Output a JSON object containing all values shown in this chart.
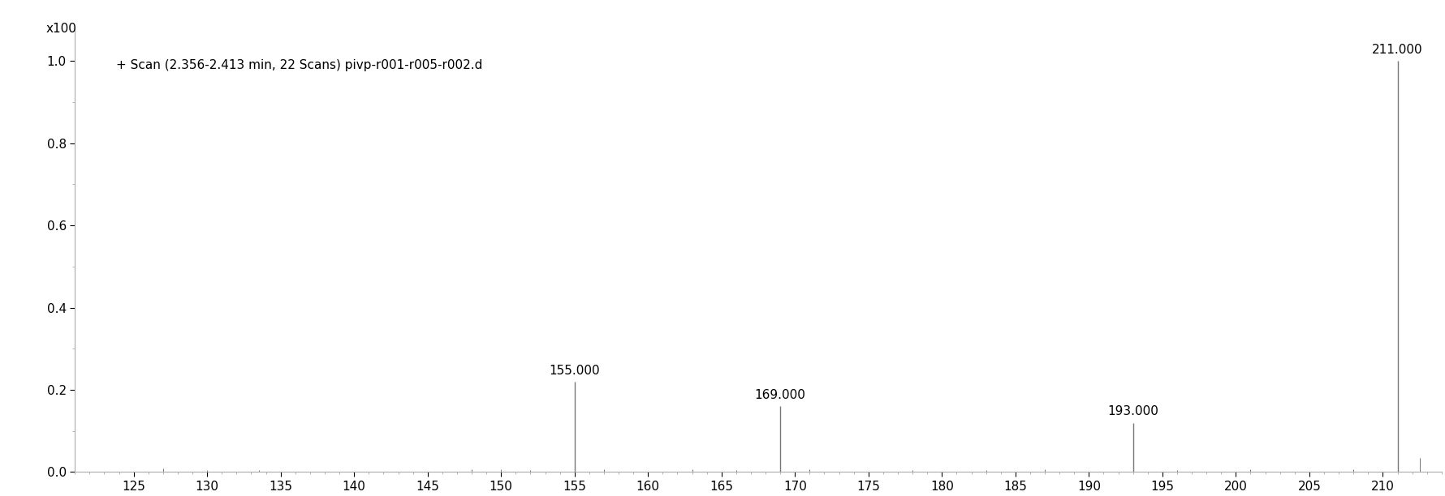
{
  "annotation": "+ Scan (2.356-2.413 min, 22 Scans) pivp-r001-r005-r002.d",
  "ylabel_text": "x100",
  "xlim": [
    121,
    214
  ],
  "ylim": [
    0,
    1.08
  ],
  "xtick_start": 125,
  "xtick_end": 210,
  "xtick_step": 5,
  "yticks": [
    0,
    0.2,
    0.4,
    0.6,
    0.8,
    1.0
  ],
  "peaks": [
    {
      "mz": 155.0,
      "intensity": 0.22,
      "label": "155.000"
    },
    {
      "mz": 169.0,
      "intensity": 0.16,
      "label": "169.000"
    },
    {
      "mz": 193.0,
      "intensity": 0.12,
      "label": "193.000"
    },
    {
      "mz": 211.0,
      "intensity": 1.0,
      "label": "211.000"
    }
  ],
  "noise_peaks": [
    {
      "mz": 127.0,
      "intensity": 0.008
    },
    {
      "mz": 130.0,
      "intensity": 0.005
    },
    {
      "mz": 133.5,
      "intensity": 0.004
    },
    {
      "mz": 148.0,
      "intensity": 0.007
    },
    {
      "mz": 150.0,
      "intensity": 0.006
    },
    {
      "mz": 152.0,
      "intensity": 0.005
    },
    {
      "mz": 157.0,
      "intensity": 0.006
    },
    {
      "mz": 163.0,
      "intensity": 0.006
    },
    {
      "mz": 166.0,
      "intensity": 0.005
    },
    {
      "mz": 171.0,
      "intensity": 0.007
    },
    {
      "mz": 178.0,
      "intensity": 0.005
    },
    {
      "mz": 183.0,
      "intensity": 0.005
    },
    {
      "mz": 187.0,
      "intensity": 0.006
    },
    {
      "mz": 196.0,
      "intensity": 0.005
    },
    {
      "mz": 201.0,
      "intensity": 0.006
    },
    {
      "mz": 208.0,
      "intensity": 0.007
    },
    {
      "mz": 212.5,
      "intensity": 0.035
    }
  ],
  "label_fontsize": 11,
  "annotation_fontsize": 11,
  "tick_fontsize": 11,
  "ylabel_fontsize": 11,
  "background_color": "#ffffff",
  "line_color": "#777777"
}
